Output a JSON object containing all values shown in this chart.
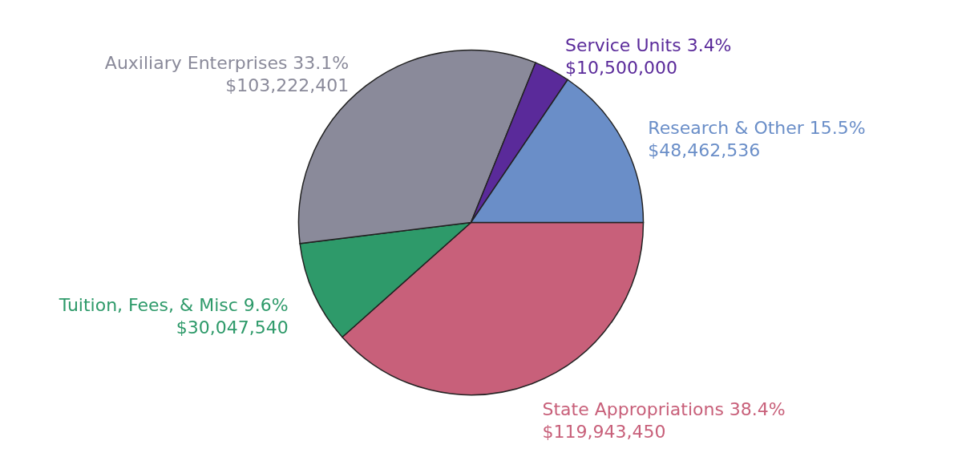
{
  "chart_data": {
    "type": "pie",
    "categories": [
      "State Appropriations",
      "Tuition, Fees, & Misc",
      "Auxiliary Enterprises",
      "Service Units",
      "Research & Other"
    ],
    "values": [
      119943450,
      30047540,
      103222401,
      10500000,
      48462536
    ],
    "colors": [
      "#c8607a",
      "#2e9a6a",
      "#8a8a9a",
      "#5a2a9a",
      "#6a8ec8"
    ],
    "value_labels": [
      "38.4%\n$119,943,450",
      "9.6%\n$30,047,540",
      "33.1%\n$103,222,401",
      "3.4%\n$10,500,000",
      "15.5%\n$48,462,536"
    ],
    "legend": false
  }
}
